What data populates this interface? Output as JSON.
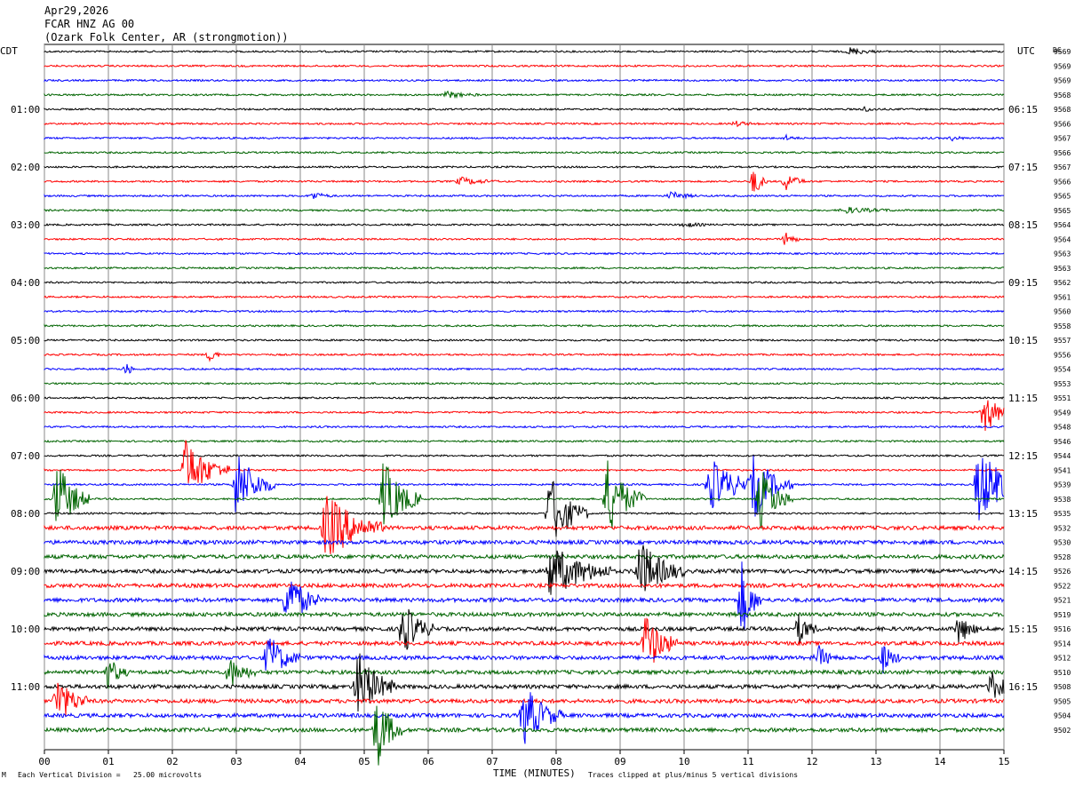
{
  "header": {
    "date": "Apr29,2026",
    "station": "FCAR HNZ AG 00",
    "location": "(Ozark Folk Center, AR (strongmotion))"
  },
  "axes": {
    "left_label": "CDT",
    "right_label": "UTC",
    "dc_label": "DC",
    "xlabel": "TIME (MINUTES)"
  },
  "footer": {
    "scale_note": "Each Vertical Division =   25.00 microvolts",
    "clip_note": "Traces clipped at plus/minus 5 vertical divisions",
    "corner_mark": "M"
  },
  "chart_data": {
    "type": "line",
    "description_kind": "helicorder",
    "x_ticks": [
      "00",
      "01",
      "02",
      "03",
      "04",
      "05",
      "06",
      "07",
      "08",
      "09",
      "10",
      "11",
      "12",
      "13",
      "14",
      "15"
    ],
    "xlim": [
      0,
      15
    ],
    "grid": true,
    "trace_colors": [
      "#000000",
      "#ff0000",
      "#0000ff",
      "#006400"
    ],
    "left_time_labels": [
      {
        "row": 4,
        "label": "01:00"
      },
      {
        "row": 8,
        "label": "02:00"
      },
      {
        "row": 12,
        "label": "03:00"
      },
      {
        "row": 16,
        "label": "04:00"
      },
      {
        "row": 20,
        "label": "05:00"
      },
      {
        "row": 24,
        "label": "06:00"
      },
      {
        "row": 28,
        "label": "07:00"
      },
      {
        "row": 32,
        "label": "08:00"
      },
      {
        "row": 36,
        "label": "09:00"
      },
      {
        "row": 40,
        "label": "10:00"
      },
      {
        "row": 44,
        "label": "11:00"
      }
    ],
    "right_time_labels": [
      {
        "row": 4,
        "label": "06:15"
      },
      {
        "row": 8,
        "label": "07:15"
      },
      {
        "row": 12,
        "label": "08:15"
      },
      {
        "row": 16,
        "label": "09:15"
      },
      {
        "row": 20,
        "label": "10:15"
      },
      {
        "row": 24,
        "label": "11:15"
      },
      {
        "row": 28,
        "label": "12:15"
      },
      {
        "row": 32,
        "label": "13:15"
      },
      {
        "row": 36,
        "label": "14:15"
      },
      {
        "row": 40,
        "label": "15:15"
      },
      {
        "row": 44,
        "label": "16:15"
      }
    ],
    "dc_offsets": [
      "9569",
      "9569",
      "9569",
      "9568",
      "9568",
      "9566",
      "9567",
      "9566",
      "9567",
      "9566",
      "9565",
      "9565",
      "9564",
      "9564",
      "9563",
      "9563",
      "9562",
      "9561",
      "9560",
      "9558",
      "9557",
      "9556",
      "9554",
      "9553",
      "9551",
      "9549",
      "9548",
      "9546",
      "9544",
      "9541",
      "9539",
      "9538",
      "9535",
      "9532",
      "9530",
      "9528",
      "9526",
      "9522",
      "9521",
      "9519",
      "9516",
      "9514",
      "9512",
      "9510",
      "9508",
      "9505",
      "9504",
      "9502"
    ],
    "events": [
      {
        "row": 0,
        "t": 12.6,
        "amp": 0.5,
        "dur": 0.4
      },
      {
        "row": 3,
        "t": 6.3,
        "amp": 0.4,
        "dur": 0.5
      },
      {
        "row": 4,
        "t": 12.8,
        "amp": 0.3,
        "dur": 0.3
      },
      {
        "row": 5,
        "t": 10.8,
        "amp": 0.3,
        "dur": 0.4
      },
      {
        "row": 6,
        "t": 11.6,
        "amp": 0.3,
        "dur": 0.2
      },
      {
        "row": 6,
        "t": 14.2,
        "amp": 0.3,
        "dur": 0.2
      },
      {
        "row": 9,
        "t": 11.1,
        "amp": 2.0,
        "dur": 0.2
      },
      {
        "row": 9,
        "t": 11.6,
        "amp": 1.2,
        "dur": 0.3
      },
      {
        "row": 9,
        "t": 6.5,
        "amp": 0.5,
        "dur": 0.6
      },
      {
        "row": 10,
        "t": 4.2,
        "amp": 0.5,
        "dur": 0.3
      },
      {
        "row": 10,
        "t": 9.8,
        "amp": 0.5,
        "dur": 0.4
      },
      {
        "row": 11,
        "t": 12.5,
        "amp": 0.4,
        "dur": 0.8
      },
      {
        "row": 12,
        "t": 10.0,
        "amp": 0.3,
        "dur": 0.4
      },
      {
        "row": 13,
        "t": 11.6,
        "amp": 1.0,
        "dur": 0.2
      },
      {
        "row": 21,
        "t": 2.6,
        "amp": 1.0,
        "dur": 0.15
      },
      {
        "row": 22,
        "t": 1.3,
        "amp": 1.0,
        "dur": 0.1
      },
      {
        "row": 25,
        "t": 14.7,
        "amp": 3.0,
        "dur": 0.4
      },
      {
        "row": 29,
        "t": 2.2,
        "amp": 4.0,
        "dur": 0.7
      },
      {
        "row": 30,
        "t": 3.0,
        "amp": 4.5,
        "dur": 0.6
      },
      {
        "row": 30,
        "t": 10.4,
        "amp": 3.5,
        "dur": 0.8
      },
      {
        "row": 30,
        "t": 11.1,
        "amp": 4.0,
        "dur": 0.6
      },
      {
        "row": 30,
        "t": 14.6,
        "amp": 5.0,
        "dur": 0.8
      },
      {
        "row": 31,
        "t": 0.2,
        "amp": 5.0,
        "dur": 0.5
      },
      {
        "row": 31,
        "t": 5.3,
        "amp": 5.0,
        "dur": 0.6
      },
      {
        "row": 31,
        "t": 8.8,
        "amp": 5.0,
        "dur": 0.6
      },
      {
        "row": 31,
        "t": 11.2,
        "amp": 4.0,
        "dur": 0.5
      },
      {
        "row": 32,
        "t": 7.9,
        "amp": 5.0,
        "dur": 0.6
      },
      {
        "row": 33,
        "t": 4.4,
        "amp": 4.5,
        "dur": 0.9
      },
      {
        "row": 36,
        "t": 7.9,
        "amp": 3.5,
        "dur": 1.0
      },
      {
        "row": 36,
        "t": 9.3,
        "amp": 4.0,
        "dur": 0.7
      },
      {
        "row": 38,
        "t": 3.8,
        "amp": 4.0,
        "dur": 0.5
      },
      {
        "row": 38,
        "t": 10.9,
        "amp": 5.0,
        "dur": 0.3
      },
      {
        "row": 40,
        "t": 5.6,
        "amp": 3.5,
        "dur": 0.5
      },
      {
        "row": 40,
        "t": 11.8,
        "amp": 2.0,
        "dur": 0.3
      },
      {
        "row": 40,
        "t": 14.3,
        "amp": 2.0,
        "dur": 0.3
      },
      {
        "row": 41,
        "t": 9.4,
        "amp": 4.0,
        "dur": 0.5
      },
      {
        "row": 42,
        "t": 3.5,
        "amp": 3.0,
        "dur": 0.5
      },
      {
        "row": 42,
        "t": 12.1,
        "amp": 1.5,
        "dur": 0.3
      },
      {
        "row": 42,
        "t": 13.1,
        "amp": 2.0,
        "dur": 0.3
      },
      {
        "row": 43,
        "t": 1.0,
        "amp": 2.0,
        "dur": 0.3
      },
      {
        "row": 43,
        "t": 2.9,
        "amp": 2.0,
        "dur": 0.4
      },
      {
        "row": 44,
        "t": 4.9,
        "amp": 4.5,
        "dur": 0.6
      },
      {
        "row": 44,
        "t": 14.8,
        "amp": 2.0,
        "dur": 0.4
      },
      {
        "row": 45,
        "t": 0.2,
        "amp": 3.0,
        "dur": 0.5
      },
      {
        "row": 46,
        "t": 7.5,
        "amp": 4.0,
        "dur": 0.6
      },
      {
        "row": 47,
        "t": 5.2,
        "amp": 5.0,
        "dur": 0.4
      }
    ],
    "noisy_rows": [
      33,
      34,
      35,
      36,
      37,
      38,
      39,
      40,
      41,
      42,
      43,
      44,
      45,
      46,
      47
    ]
  }
}
